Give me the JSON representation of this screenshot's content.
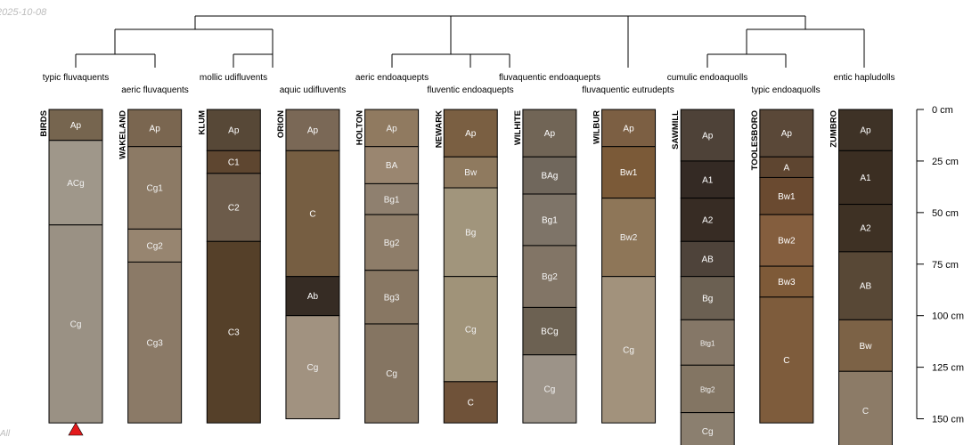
{
  "header": {
    "date": "2025-10-08"
  },
  "footer": {
    "note": "All"
  },
  "depth_axis": {
    "unit": "cm",
    "ticks": [
      {
        "depth": 0,
        "label": "0 cm"
      },
      {
        "depth": 25,
        "label": "25 cm"
      },
      {
        "depth": 50,
        "label": "50 cm"
      },
      {
        "depth": 75,
        "label": "75 cm"
      },
      {
        "depth": 100,
        "label": "100 cm"
      },
      {
        "depth": 125,
        "label": "125 cm"
      },
      {
        "depth": 150,
        "label": "150 cm"
      }
    ]
  },
  "marker": {
    "profile": "BIRDS",
    "color": "#e31a1c"
  },
  "dendrogram": {
    "taxa": [
      "typic fluvaquents",
      "aeric fluvaquents",
      "mollic udifluvents",
      "aquic udifluvents",
      "aeric endoaquepts",
      "fluventic endoaquepts",
      "fluvaquentic endoaquepts",
      "fluvaquentic eutrudepts",
      "cumulic endoaquolls",
      "typic endoaquolls",
      "entic hapludolls"
    ]
  },
  "profiles": [
    {
      "name": "BIRDS",
      "horizons": [
        {
          "name": "Ap",
          "top": 0,
          "bottom": 15,
          "color": "#76654f"
        },
        {
          "name": "ACg",
          "top": 15,
          "bottom": 56,
          "color": "#9f978a"
        },
        {
          "name": "Cg",
          "top": 56,
          "bottom": 152,
          "color": "#9a9184"
        }
      ]
    },
    {
      "name": "WAKELAND",
      "horizons": [
        {
          "name": "Ap",
          "top": 0,
          "bottom": 18,
          "color": "#7a6650"
        },
        {
          "name": "Cg1",
          "top": 18,
          "bottom": 58,
          "color": "#8c7a65"
        },
        {
          "name": "Cg2",
          "top": 58,
          "bottom": 74,
          "color": "#978570"
        },
        {
          "name": "Cg3",
          "top": 74,
          "bottom": 152,
          "color": "#8b7a67"
        }
      ]
    },
    {
      "name": "KLUM",
      "horizons": [
        {
          "name": "Ap",
          "top": 0,
          "bottom": 20,
          "color": "#574837"
        },
        {
          "name": "C1",
          "top": 20,
          "bottom": 31,
          "color": "#5e4630"
        },
        {
          "name": "C2",
          "top": 31,
          "bottom": 64,
          "color": "#6c5b4a"
        },
        {
          "name": "C3",
          "top": 64,
          "bottom": 152,
          "color": "#554029"
        }
      ]
    },
    {
      "name": "ORION",
      "horizons": [
        {
          "name": "Ap",
          "top": 0,
          "bottom": 20,
          "color": "#7a6856"
        },
        {
          "name": "C",
          "top": 20,
          "bottom": 81,
          "color": "#765e42"
        },
        {
          "name": "Ab",
          "top": 81,
          "bottom": 100,
          "color": "#362c24"
        },
        {
          "name": "Cg",
          "top": 100,
          "bottom": 150,
          "color": "#a19280"
        }
      ]
    },
    {
      "name": "HOLTON",
      "horizons": [
        {
          "name": "Ap",
          "top": 0,
          "bottom": 18,
          "color": "#907a60"
        },
        {
          "name": "BA",
          "top": 18,
          "bottom": 36,
          "color": "#9a8670"
        },
        {
          "name": "Bg1",
          "top": 36,
          "bottom": 51,
          "color": "#8f806f"
        },
        {
          "name": "Bg2",
          "top": 51,
          "bottom": 78,
          "color": "#8e7d69"
        },
        {
          "name": "Bg3",
          "top": 78,
          "bottom": 104,
          "color": "#887763"
        },
        {
          "name": "Cg",
          "top": 104,
          "bottom": 152,
          "color": "#857562"
        }
      ]
    },
    {
      "name": "NEWARK",
      "horizons": [
        {
          "name": "Ap",
          "top": 0,
          "bottom": 23,
          "color": "#7a5f42"
        },
        {
          "name": "Bw",
          "top": 23,
          "bottom": 38,
          "color": "#8f7a5f"
        },
        {
          "name": "Bg",
          "top": 38,
          "bottom": 81,
          "color": "#a1957c"
        },
        {
          "name": "Cg",
          "top": 81,
          "bottom": 132,
          "color": "#a09379"
        },
        {
          "name": "C",
          "top": 132,
          "bottom": 152,
          "color": "#6f5239"
        }
      ]
    },
    {
      "name": "WILHITE",
      "horizons": [
        {
          "name": "Ap",
          "top": 0,
          "bottom": 23,
          "color": "#716556"
        },
        {
          "name": "BAg",
          "top": 23,
          "bottom": 41,
          "color": "#70675c"
        },
        {
          "name": "Bg1",
          "top": 41,
          "bottom": 66,
          "color": "#7e7468"
        },
        {
          "name": "Bg2",
          "top": 66,
          "bottom": 96,
          "color": "#827566"
        },
        {
          "name": "BCg",
          "top": 96,
          "bottom": 119,
          "color": "#6c6152"
        },
        {
          "name": "Cg",
          "top": 119,
          "bottom": 152,
          "color": "#9c9388"
        }
      ]
    },
    {
      "name": "WILBUR",
      "horizons": [
        {
          "name": "Ap",
          "top": 0,
          "bottom": 18,
          "color": "#7c5f43"
        },
        {
          "name": "Bw1",
          "top": 18,
          "bottom": 43,
          "color": "#7b5a38"
        },
        {
          "name": "Bw2",
          "top": 43,
          "bottom": 81,
          "color": "#8e7658"
        },
        {
          "name": "Cg",
          "top": 81,
          "bottom": 152,
          "color": "#a2927c"
        }
      ]
    },
    {
      "name": "SAWMILL",
      "horizons": [
        {
          "name": "Ap",
          "top": 0,
          "bottom": 25,
          "color": "#4e4238"
        },
        {
          "name": "A1",
          "top": 25,
          "bottom": 43,
          "color": "#342a24"
        },
        {
          "name": "A2",
          "top": 43,
          "bottom": 64,
          "color": "#372c24"
        },
        {
          "name": "AB",
          "top": 64,
          "bottom": 81,
          "color": "#4e433a"
        },
        {
          "name": "Bg",
          "top": 81,
          "bottom": 102,
          "color": "#6b6052"
        },
        {
          "name": "Btg1",
          "top": 102,
          "bottom": 124,
          "color": "#857767"
        },
        {
          "name": "Btg2",
          "top": 124,
          "bottom": 147,
          "color": "#837563"
        },
        {
          "name": "Cg",
          "top": 147,
          "bottom": 165,
          "color": "#8b7f6f"
        }
      ]
    },
    {
      "name": "TOOLESBORO",
      "horizons": [
        {
          "name": "Ap",
          "top": 0,
          "bottom": 23,
          "color": "#5a4838"
        },
        {
          "name": "A",
          "top": 23,
          "bottom": 33,
          "color": "#5e4530"
        },
        {
          "name": "Bw1",
          "top": 33,
          "bottom": 51,
          "color": "#6a4a30"
        },
        {
          "name": "Bw2",
          "top": 51,
          "bottom": 76,
          "color": "#845e3e"
        },
        {
          "name": "Bw3",
          "top": 76,
          "bottom": 91,
          "color": "#7e5a38"
        },
        {
          "name": "C",
          "top": 91,
          "bottom": 152,
          "color": "#7e5c3c"
        }
      ]
    },
    {
      "name": "ZUMBRO",
      "horizons": [
        {
          "name": "Ap",
          "top": 0,
          "bottom": 20,
          "color": "#3e3226"
        },
        {
          "name": "A1",
          "top": 20,
          "bottom": 46,
          "color": "#3b2e22"
        },
        {
          "name": "A2",
          "top": 46,
          "bottom": 69,
          "color": "#3e3124"
        },
        {
          "name": "AB",
          "top": 69,
          "bottom": 102,
          "color": "#584836"
        },
        {
          "name": "Bw",
          "top": 102,
          "bottom": 127,
          "color": "#7c6246"
        },
        {
          "name": "C",
          "top": 127,
          "bottom": 165,
          "color": "#8c7b67"
        }
      ]
    }
  ]
}
